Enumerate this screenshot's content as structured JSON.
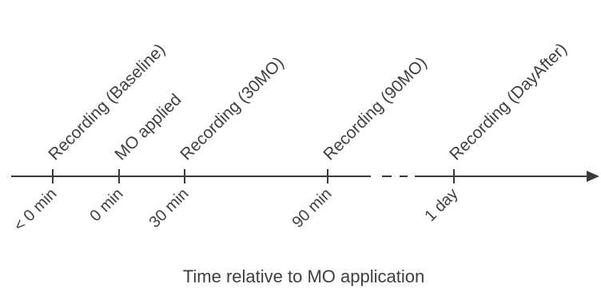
{
  "diagram": {
    "axis_title": "Time relative to MO application",
    "events": [
      {
        "time_label": "< 0 min",
        "event_label": "Recording (Baseline)"
      },
      {
        "time_label": "0 min",
        "event_label": "MO applied"
      },
      {
        "time_label": "30 min",
        "event_label": "Recording (30MO)"
      },
      {
        "time_label": "90 min",
        "event_label": "Recording (90MO)"
      },
      {
        "time_label": "1 day",
        "event_label": "Recording (DayAfter)"
      }
    ]
  },
  "colors": {
    "line": "#3a3a3a",
    "text": "#3f3f3f"
  }
}
